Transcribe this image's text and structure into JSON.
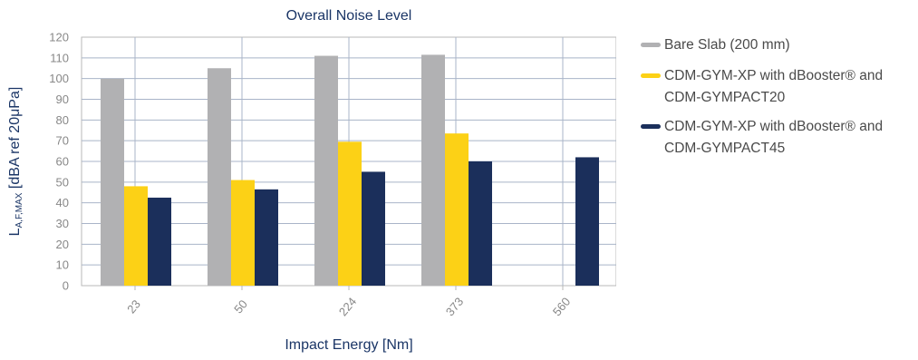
{
  "colors": {
    "text_dark": "#1a3566",
    "tick_text": "#888888",
    "grid": "#a9b4c8",
    "axis": "#b8b8b8"
  },
  "chart_data": {
    "type": "bar",
    "title": "Overall Noise Level",
    "xlabel": "Impact Energy [Nm]",
    "ylabel_main": "L",
    "ylabel_sub": "A,F,MAX",
    "ylabel_rest": " [dBA ref 20μPa]",
    "categories": [
      "23",
      "50",
      "224",
      "373",
      "560"
    ],
    "ylim": [
      0,
      120
    ],
    "yticks": [
      0,
      10,
      20,
      30,
      40,
      50,
      60,
      70,
      80,
      90,
      100,
      110,
      120
    ],
    "grid": true,
    "legend_position": "right",
    "series": [
      {
        "name": "Bare Slab (200 mm)",
        "color": "#b1b1b3",
        "values": [
          100,
          105,
          111,
          111.5,
          null
        ]
      },
      {
        "name": "CDM-GYM-XP with dBooster® and CDM-GYMPACT20",
        "color": "#fcd116",
        "values": [
          48,
          51,
          69.5,
          73.5,
          null
        ]
      },
      {
        "name": "CDM-GYM-XP with dBooster® and CDM-GYMPACT45",
        "color": "#1b2f5b",
        "values": [
          42.5,
          46.5,
          55,
          60,
          62
        ]
      }
    ]
  }
}
